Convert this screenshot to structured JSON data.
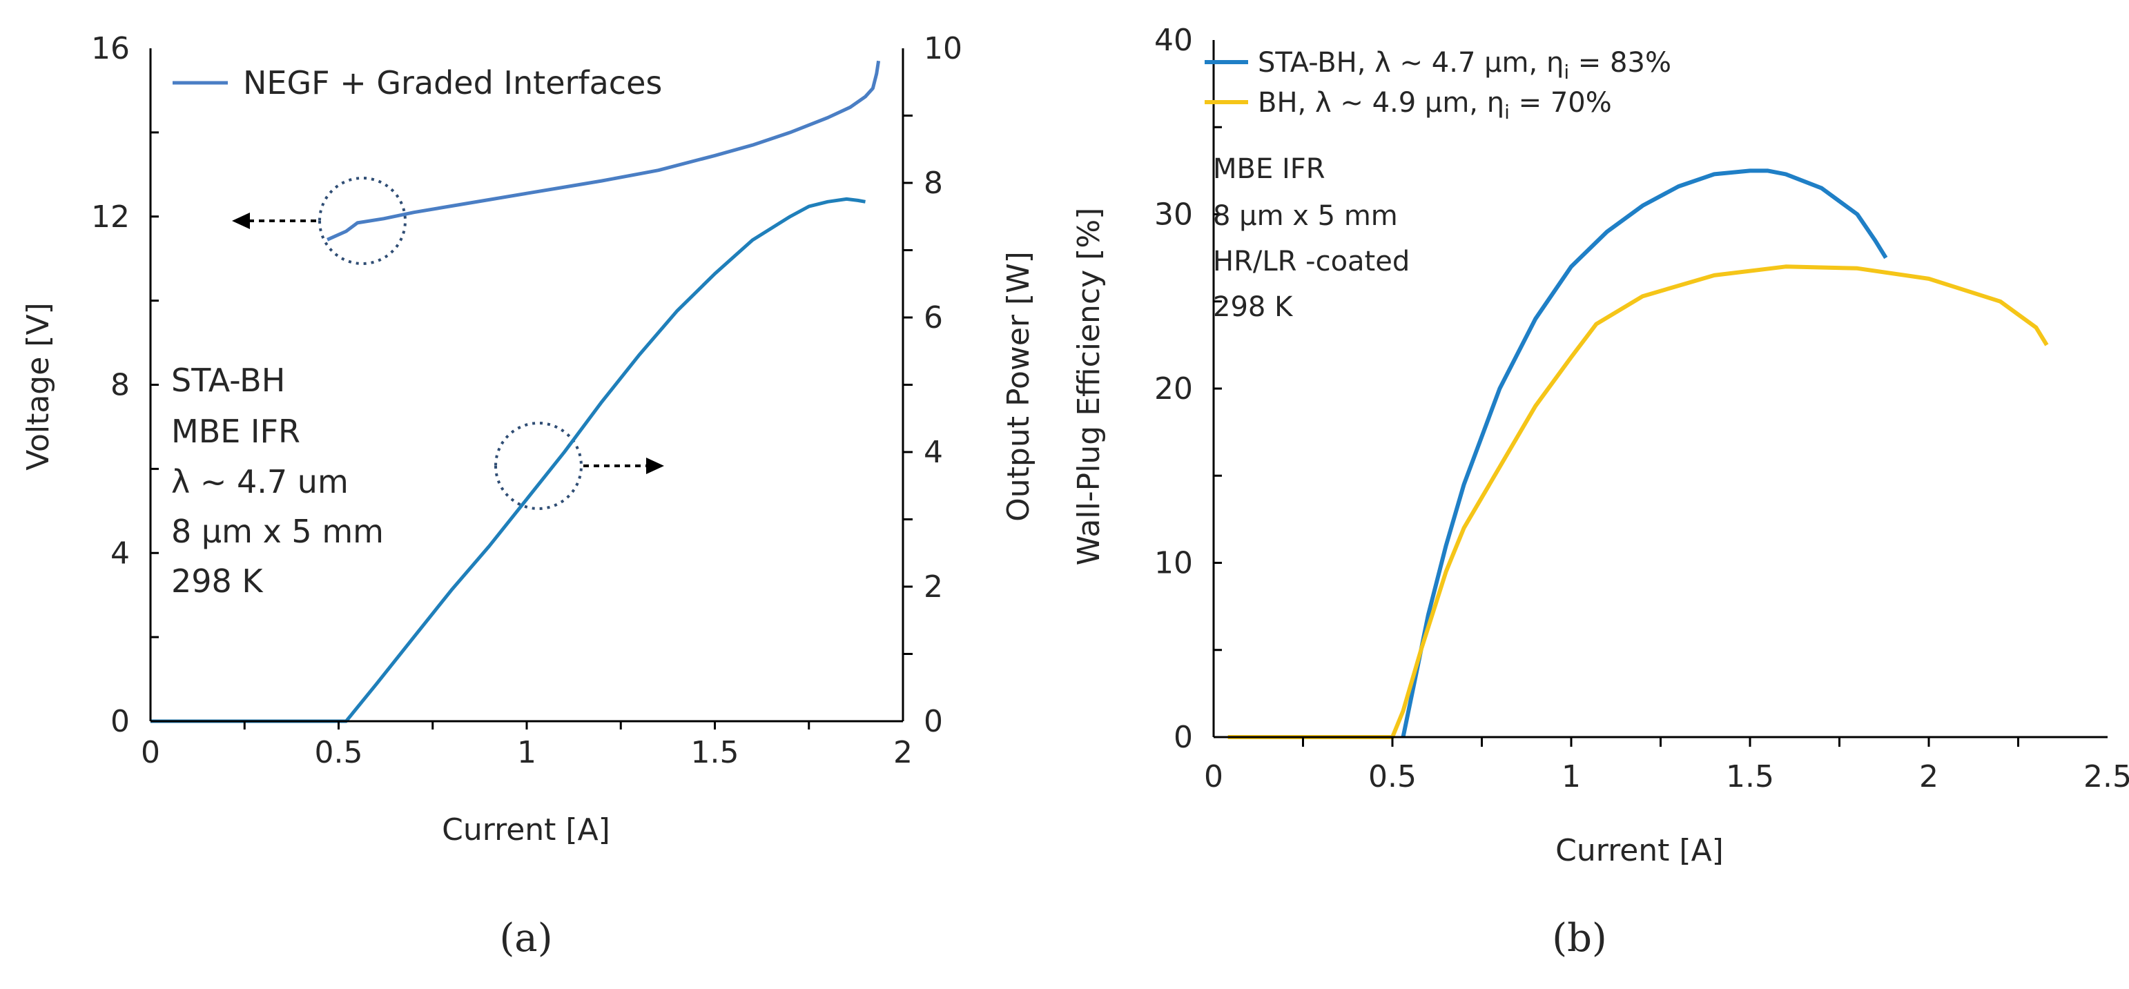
{
  "chart_data": [
    {
      "type": "line",
      "panel_label": "(a)",
      "xlabel": "Current [A]",
      "ylabel_left": "Voltage [V]",
      "ylabel_right": "Output Power [W]",
      "xlim": [
        0,
        2
      ],
      "ylim_left": [
        0,
        16
      ],
      "ylim_right": [
        0,
        10
      ],
      "x_ticks": [
        "0",
        "0.5",
        "1",
        "1.5",
        "2"
      ],
      "y_ticks_left": [
        "0",
        "4",
        "8",
        "12",
        "16"
      ],
      "y_ticks_right": [
        "0",
        "2",
        "4",
        "6",
        "8",
        "10"
      ],
      "legend": [
        "NEGF + Graded Interfaces"
      ],
      "annotation_lines": [
        "STA-BH",
        "MBE IFR",
        "λ ~ 4.7 um",
        "8 μm x 5 mm",
        "298 K"
      ],
      "series": [
        {
          "name": "NEGF + Graded Interfaces",
          "axis": "left",
          "color": "#4a7ec4",
          "x": [
            0.47,
            0.52,
            0.55,
            0.62,
            0.7,
            0.8,
            0.9,
            1.0,
            1.1,
            1.2,
            1.35,
            1.5,
            1.6,
            1.7,
            1.8,
            1.86,
            1.9,
            1.92,
            1.93,
            1.935
          ],
          "y": [
            11.45,
            11.65,
            11.85,
            11.95,
            12.1,
            12.25,
            12.4,
            12.55,
            12.7,
            12.85,
            13.1,
            13.45,
            13.7,
            14.0,
            14.35,
            14.6,
            14.85,
            15.05,
            15.4,
            15.7
          ]
        },
        {
          "name": "Output Power",
          "axis": "right",
          "color": "#1f7fba",
          "x": [
            0.0,
            0.3,
            0.5,
            0.52,
            0.6,
            0.7,
            0.8,
            0.9,
            1.0,
            1.1,
            1.2,
            1.3,
            1.4,
            1.5,
            1.6,
            1.7,
            1.75,
            1.8,
            1.85,
            1.88,
            1.9
          ],
          "y": [
            0.0,
            0.0,
            0.0,
            0.0,
            0.55,
            1.25,
            1.95,
            2.6,
            3.3,
            4.0,
            4.75,
            5.45,
            6.1,
            6.65,
            7.15,
            7.5,
            7.65,
            7.72,
            7.76,
            7.74,
            7.72
          ]
        }
      ]
    },
    {
      "type": "line",
      "panel_label": "(b)",
      "xlabel": "Current [A]",
      "ylabel": "Wall-Plug Efficiency [%]",
      "xlim": [
        0,
        2.5
      ],
      "ylim": [
        0,
        40
      ],
      "x_ticks": [
        "0",
        "0.5",
        "1",
        "1.5",
        "2",
        "2.5"
      ],
      "y_ticks": [
        "0",
        "10",
        "20",
        "30",
        "40"
      ],
      "legend_placement": "top-left",
      "annotation_lines": [
        "MBE IFR",
        "8 μm x 5 mm",
        "HR/LR -coated",
        "298 K"
      ],
      "series": [
        {
          "name": "STA-BH, λ ~ 4.7 μm, η",
          "name_subscript": "i",
          "name_suffix": " = 83%",
          "color": "#1f7fc6",
          "x": [
            0.53,
            0.57,
            0.6,
            0.65,
            0.7,
            0.8,
            0.9,
            1.0,
            1.1,
            1.2,
            1.3,
            1.4,
            1.5,
            1.55,
            1.6,
            1.7,
            1.8,
            1.85,
            1.88
          ],
          "y": [
            0.0,
            4.0,
            7.0,
            11.0,
            14.5,
            20.0,
            24.0,
            27.0,
            29.0,
            30.5,
            31.6,
            32.3,
            32.5,
            32.5,
            32.3,
            31.5,
            30.0,
            28.5,
            27.5
          ]
        },
        {
          "name": "BH, λ ~ 4.9 μm, η",
          "name_subscript": "i",
          "name_suffix": " = 70%",
          "color": "#f5c518",
          "x": [
            0.04,
            0.2,
            0.4,
            0.5,
            0.53,
            0.58,
            0.65,
            0.7,
            0.8,
            0.9,
            1.0,
            1.07,
            1.2,
            1.4,
            1.6,
            1.8,
            2.0,
            2.2,
            2.3,
            2.33
          ],
          "y": [
            0.0,
            0.0,
            0.0,
            0.0,
            1.5,
            5.0,
            9.5,
            12.0,
            15.5,
            19.0,
            21.8,
            23.7,
            25.3,
            26.5,
            27.0,
            26.9,
            26.3,
            25.0,
            23.5,
            22.5
          ]
        }
      ]
    }
  ]
}
